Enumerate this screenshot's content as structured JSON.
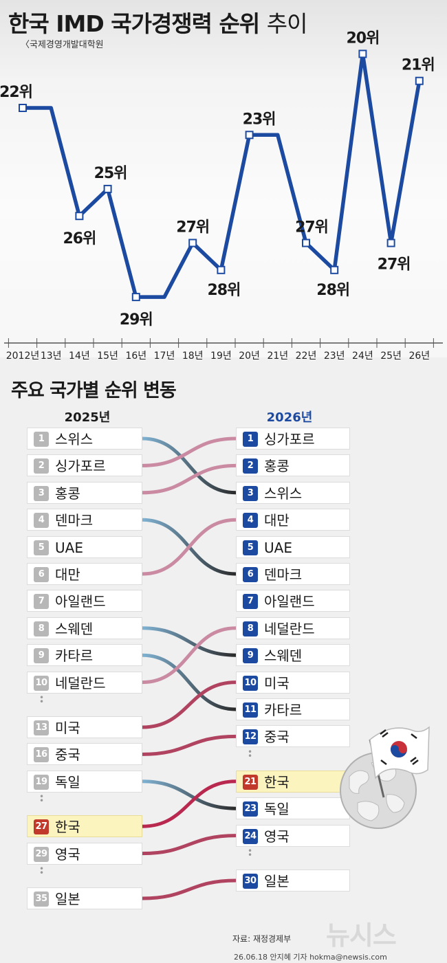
{
  "title_bold": "한국 IMD 국가경쟁력 순위",
  "title_light": "추이",
  "source_note": "〈국제경영개발대학원",
  "section_title": "주요 국가별 순위 변동",
  "left_year": "2025년",
  "right_year": "2026년",
  "credit_source": "자료: 재정경제부",
  "credit_byline": "26.06.18 안지혜 기자 hokma@newsis.com",
  "watermark": "뉴시스",
  "colors": {
    "line": "#1c4aa0",
    "rank_badge": "#1c4aa0",
    "korea_badge": "#c0392b",
    "korea_highlight": "#fcf4bf"
  },
  "chart_data": [
    {
      "type": "line",
      "title": "한국 IMD 국가경쟁력 순위 추이",
      "x": [
        "2012년",
        "13년",
        "14년",
        "15년",
        "16년",
        "17년",
        "18년",
        "19년",
        "20년",
        "21년",
        "22년",
        "23년",
        "24년",
        "25년",
        "26년"
      ],
      "values": [
        22,
        22,
        26,
        25,
        29,
        29,
        27,
        28,
        23,
        23,
        27,
        28,
        20,
        27,
        21
      ],
      "labels": [
        {
          "x": "2012년",
          "text": "22위"
        },
        {
          "x": "14년",
          "text": "26위"
        },
        {
          "x": "15년",
          "text": "25위"
        },
        {
          "x": "16년",
          "text": "29위"
        },
        {
          "x": "18년",
          "text": "27위"
        },
        {
          "x": "19년",
          "text": "28위"
        },
        {
          "x": "20년",
          "text": "23위"
        },
        {
          "x": "22년",
          "text": "27위"
        },
        {
          "x": "23년",
          "text": "28위"
        },
        {
          "x": "24년",
          "text": "20위"
        },
        {
          "x": "25년",
          "text": "27위"
        },
        {
          "x": "26년",
          "text": "21위"
        }
      ],
      "y_inverted": true,
      "ylim": [
        19,
        30
      ],
      "grid": false
    },
    {
      "type": "slope",
      "title": "주요 국가별 순위 변동",
      "left_label": "2025년",
      "right_label": "2026년",
      "left": [
        {
          "rank": "1",
          "name": "스위스"
        },
        {
          "rank": "2",
          "name": "싱가포르"
        },
        {
          "rank": "3",
          "name": "홍콩"
        },
        {
          "rank": "4",
          "name": "덴마크"
        },
        {
          "rank": "5",
          "name": "UAE"
        },
        {
          "rank": "6",
          "name": "대만"
        },
        {
          "rank": "7",
          "name": "아일랜드"
        },
        {
          "rank": "8",
          "name": "스웨덴"
        },
        {
          "rank": "9",
          "name": "카타르"
        },
        {
          "rank": "10",
          "name": "네덜란드"
        },
        {
          "gap": true
        },
        {
          "rank": "13",
          "name": "미국"
        },
        {
          "rank": "16",
          "name": "중국"
        },
        {
          "rank": "19",
          "name": "독일"
        },
        {
          "gap": true
        },
        {
          "rank": "27",
          "name": "한국",
          "highlight": true
        },
        {
          "rank": "29",
          "name": "영국"
        },
        {
          "gap": true
        },
        {
          "rank": "35",
          "name": "일본"
        }
      ],
      "right": [
        {
          "rank": "1",
          "name": "싱가포르"
        },
        {
          "rank": "2",
          "name": "홍콩"
        },
        {
          "rank": "3",
          "name": "스위스"
        },
        {
          "rank": "4",
          "name": "대만"
        },
        {
          "rank": "5",
          "name": "UAE"
        },
        {
          "rank": "6",
          "name": "덴마크"
        },
        {
          "rank": "7",
          "name": "아일랜드"
        },
        {
          "rank": "8",
          "name": "네덜란드"
        },
        {
          "rank": "9",
          "name": "스웨덴"
        },
        {
          "rank": "10",
          "name": "미국"
        },
        {
          "rank": "11",
          "name": "카타르"
        },
        {
          "rank": "12",
          "name": "중국"
        },
        {
          "gap": true
        },
        {
          "rank": "21",
          "name": "한국",
          "highlight": true
        },
        {
          "rank": "23",
          "name": "독일"
        },
        {
          "rank": "24",
          "name": "영국"
        },
        {
          "gap": true
        },
        {
          "rank": "30",
          "name": "일본"
        }
      ]
    }
  ]
}
